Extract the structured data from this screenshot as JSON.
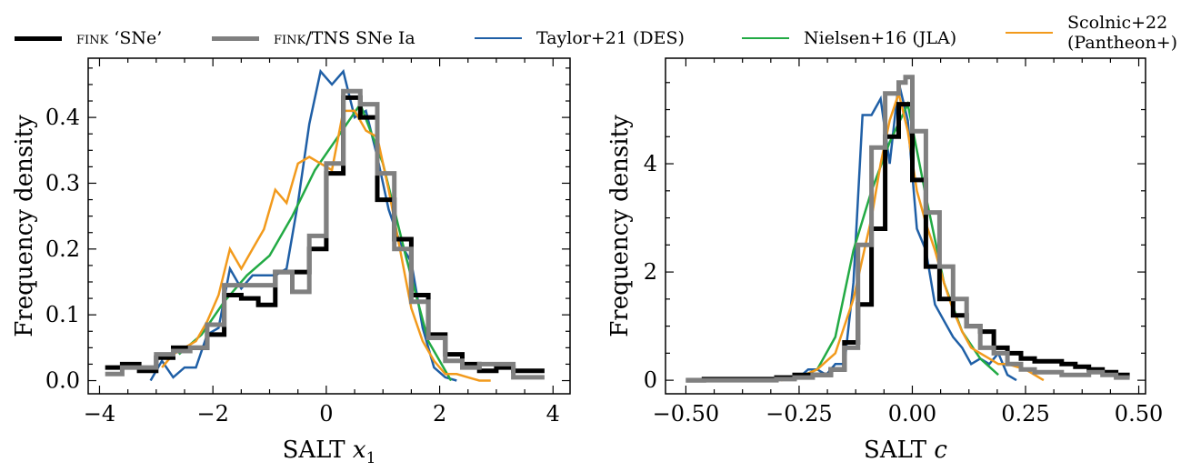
{
  "legend": [
    {
      "key": "fink_sne",
      "prefix": "fink",
      "label": " ‘SNe’",
      "color": "#000000",
      "width": 5
    },
    {
      "key": "fink_tns",
      "prefix": "fink",
      "label": "/TNS SNe Ia",
      "color": "#808080",
      "width": 5
    },
    {
      "key": "taylor",
      "prefix": "",
      "label": "Taylor+21 (DES)",
      "color": "#1f5fa6",
      "width": 2.5
    },
    {
      "key": "nielsen",
      "prefix": "",
      "label": "Nielsen+16 (JLA)",
      "color": "#22aa44",
      "width": 2.5
    },
    {
      "key": "scolnic",
      "prefix": "",
      "label": "Scolnic+22",
      "label2": "(Pantheon+)",
      "color": "#f29a1c",
      "width": 2.5
    }
  ],
  "chart_data": [
    {
      "type": "line",
      "xlabel_text": "SALT ",
      "xlabel_var": "x",
      "xlabel_sub": "1",
      "ylabel": "Frequency density",
      "xlim": [
        -4.2,
        4.3
      ],
      "ylim": [
        -0.02,
        0.49
      ],
      "xticks": [
        -4,
        -2,
        0,
        2,
        4
      ],
      "xticklabels": [
        "−4",
        "−2",
        "0",
        "2",
        "4"
      ],
      "yticks": [
        0.0,
        0.1,
        0.2,
        0.3,
        0.4
      ],
      "yticklabels": [
        "0.0",
        "0.1",
        "0.2",
        "0.3",
        "0.4"
      ],
      "series": [
        {
          "key": "taylor",
          "style": "line",
          "x": [
            -3.1,
            -2.9,
            -2.7,
            -2.5,
            -2.3,
            -2.1,
            -1.9,
            -1.7,
            -1.5,
            -1.3,
            -1.1,
            -0.9,
            -0.7,
            -0.5,
            -0.3,
            -0.1,
            0.1,
            0.3,
            0.5,
            0.7,
            0.9,
            1.1,
            1.3,
            1.5,
            1.7,
            1.9,
            2.1,
            2.3
          ],
          "y": [
            0.0,
            0.03,
            0.005,
            0.02,
            0.02,
            0.07,
            0.08,
            0.17,
            0.14,
            0.16,
            0.16,
            0.16,
            0.17,
            0.27,
            0.39,
            0.47,
            0.45,
            0.47,
            0.4,
            0.41,
            0.34,
            0.26,
            0.21,
            0.18,
            0.08,
            0.02,
            0.005,
            0.0
          ]
        },
        {
          "key": "nielsen",
          "style": "line",
          "x": [
            -2.6,
            -2.2,
            -1.8,
            -1.4,
            -1.0,
            -0.6,
            -0.2,
            0.2,
            0.6,
            1.0,
            1.4,
            1.8,
            2.2
          ],
          "y": [
            0.04,
            0.07,
            0.12,
            0.16,
            0.19,
            0.25,
            0.32,
            0.37,
            0.42,
            0.33,
            0.19,
            0.06,
            0.0
          ]
        },
        {
          "key": "scolnic",
          "style": "line",
          "x": [
            -2.9,
            -2.7,
            -2.5,
            -2.3,
            -2.1,
            -1.9,
            -1.7,
            -1.5,
            -1.3,
            -1.1,
            -0.9,
            -0.7,
            -0.5,
            -0.3,
            -0.1,
            0.1,
            0.3,
            0.5,
            0.7,
            0.9,
            1.1,
            1.3,
            1.5,
            1.7,
            1.9,
            2.1,
            2.3,
            2.5,
            2.7,
            2.9
          ],
          "y": [
            0.02,
            0.04,
            0.05,
            0.06,
            0.09,
            0.13,
            0.2,
            0.17,
            0.2,
            0.23,
            0.29,
            0.27,
            0.33,
            0.34,
            0.33,
            0.32,
            0.41,
            0.41,
            0.38,
            0.37,
            0.29,
            0.2,
            0.11,
            0.06,
            0.03,
            0.01,
            0.01,
            0.005,
            0.0,
            0.0
          ]
        },
        {
          "key": "fink_sne",
          "style": "step",
          "edges": [
            -3.9,
            -3.6,
            -3.3,
            -3.0,
            -2.7,
            -2.4,
            -2.1,
            -1.8,
            -1.5,
            -1.2,
            -0.9,
            -0.6,
            -0.3,
            0.0,
            0.3,
            0.6,
            0.9,
            1.2,
            1.5,
            1.8,
            2.1,
            2.4,
            2.7,
            3.0,
            3.3,
            3.6,
            3.85
          ],
          "y": [
            0.02,
            0.025,
            0.015,
            0.035,
            0.05,
            0.05,
            0.07,
            0.13,
            0.125,
            0.115,
            0.165,
            0.165,
            0.2,
            0.315,
            0.43,
            0.4,
            0.275,
            0.215,
            0.13,
            0.07,
            0.04,
            0.025,
            0.015,
            0.02,
            0.015,
            0.015
          ]
        },
        {
          "key": "fink_tns",
          "style": "step",
          "edges": [
            -3.9,
            -3.6,
            -3.3,
            -3.0,
            -2.7,
            -2.4,
            -2.1,
            -1.8,
            -1.5,
            -1.2,
            -0.9,
            -0.6,
            -0.3,
            0.0,
            0.3,
            0.6,
            0.9,
            1.2,
            1.5,
            1.8,
            2.1,
            2.4,
            2.7,
            3.0,
            3.3,
            3.6,
            3.85
          ],
          "y": [
            0.01,
            0.02,
            0.02,
            0.04,
            0.045,
            0.05,
            0.085,
            0.145,
            0.145,
            0.145,
            0.165,
            0.135,
            0.22,
            0.33,
            0.44,
            0.42,
            0.315,
            0.2,
            0.12,
            0.065,
            0.03,
            0.02,
            0.025,
            0.025,
            0.005,
            0.005
          ]
        }
      ]
    },
    {
      "type": "line",
      "xlabel_text": "SALT ",
      "xlabel_var": "c",
      "xlabel_sub": "",
      "ylabel": "Frequency density",
      "xlim": [
        -0.545,
        0.515
      ],
      "ylim": [
        -0.25,
        5.95
      ],
      "xticks": [
        -0.5,
        -0.25,
        0.0,
        0.25,
        0.5
      ],
      "xticklabels": [
        "−0.50",
        "−0.25",
        "0.00",
        "0.25",
        "0.50"
      ],
      "yticks": [
        0,
        2,
        4
      ],
      "yticklabels": [
        "0",
        "2",
        "4"
      ],
      "series": [
        {
          "key": "taylor",
          "style": "line",
          "x": [
            -0.25,
            -0.23,
            -0.21,
            -0.19,
            -0.17,
            -0.15,
            -0.13,
            -0.11,
            -0.09,
            -0.07,
            -0.05,
            -0.03,
            -0.01,
            0.01,
            0.03,
            0.05,
            0.07,
            0.09,
            0.11,
            0.13,
            0.15,
            0.17,
            0.19,
            0.21,
            0.23
          ],
          "y": [
            0.05,
            0.2,
            0.2,
            0.1,
            0.3,
            0.3,
            1.8,
            4.9,
            4.9,
            5.2,
            4.0,
            5.5,
            4.8,
            2.8,
            2.4,
            1.4,
            1.1,
            0.8,
            0.6,
            0.3,
            0.4,
            0.3,
            0.5,
            0.1,
            0.0
          ]
        },
        {
          "key": "nielsen",
          "style": "line",
          "x": [
            -0.25,
            -0.21,
            -0.17,
            -0.13,
            -0.09,
            -0.05,
            -0.01,
            0.03,
            0.07,
            0.11,
            0.15,
            0.19
          ],
          "y": [
            0.05,
            0.2,
            0.8,
            2.4,
            3.5,
            4.4,
            5.1,
            3.4,
            1.8,
            0.9,
            0.4,
            0.1
          ]
        },
        {
          "key": "scolnic",
          "style": "line",
          "x": [
            -0.29,
            -0.25,
            -0.21,
            -0.17,
            -0.13,
            -0.09,
            -0.07,
            -0.05,
            -0.03,
            -0.01,
            0.01,
            0.03,
            0.05,
            0.07,
            0.09,
            0.11,
            0.13,
            0.15,
            0.17,
            0.19,
            0.21,
            0.25,
            0.29
          ],
          "y": [
            0.0,
            0.05,
            0.2,
            0.5,
            1.5,
            3.0,
            4.0,
            4.8,
            5.3,
            4.6,
            3.5,
            2.9,
            2.4,
            1.8,
            1.3,
            0.9,
            0.6,
            0.5,
            0.4,
            0.3,
            0.3,
            0.2,
            0.0
          ]
        },
        {
          "key": "fink_sne",
          "style": "step",
          "edges": [
            -0.5,
            -0.46,
            -0.42,
            -0.38,
            -0.34,
            -0.3,
            -0.26,
            -0.22,
            -0.18,
            -0.15,
            -0.12,
            -0.09,
            -0.06,
            -0.03,
            0.0,
            0.03,
            0.06,
            0.09,
            0.12,
            0.15,
            0.18,
            0.21,
            0.24,
            0.27,
            0.3,
            0.33,
            0.36,
            0.39,
            0.42,
            0.45,
            0.48
          ],
          "y": [
            0.0,
            0.02,
            0.02,
            0.02,
            0.02,
            0.05,
            0.1,
            0.1,
            0.2,
            0.7,
            1.4,
            2.8,
            4.5,
            5.1,
            3.7,
            2.1,
            1.5,
            1.2,
            1.0,
            0.9,
            0.6,
            0.5,
            0.4,
            0.35,
            0.35,
            0.3,
            0.25,
            0.2,
            0.15,
            0.1
          ]
        },
        {
          "key": "fink_tns",
          "style": "step",
          "edges": [
            -0.5,
            -0.46,
            -0.42,
            -0.38,
            -0.34,
            -0.3,
            -0.26,
            -0.22,
            -0.18,
            -0.15,
            -0.12,
            -0.09,
            -0.06,
            -0.03,
            -0.015,
            0.0,
            0.03,
            0.06,
            0.09,
            0.12,
            0.15,
            0.18,
            0.21,
            0.24,
            0.27,
            0.3,
            0.33,
            0.36,
            0.39,
            0.42,
            0.45,
            0.48
          ],
          "y": [
            0.0,
            0.0,
            0.0,
            0.0,
            0.0,
            0.02,
            0.05,
            0.1,
            0.2,
            0.6,
            2.5,
            4.3,
            5.3,
            5.5,
            5.6,
            4.6,
            3.1,
            2.1,
            1.5,
            1.0,
            0.6,
            0.5,
            0.3,
            0.2,
            0.15,
            0.15,
            0.1,
            0.1,
            0.15,
            0.1,
            0.05
          ]
        }
      ]
    }
  ]
}
